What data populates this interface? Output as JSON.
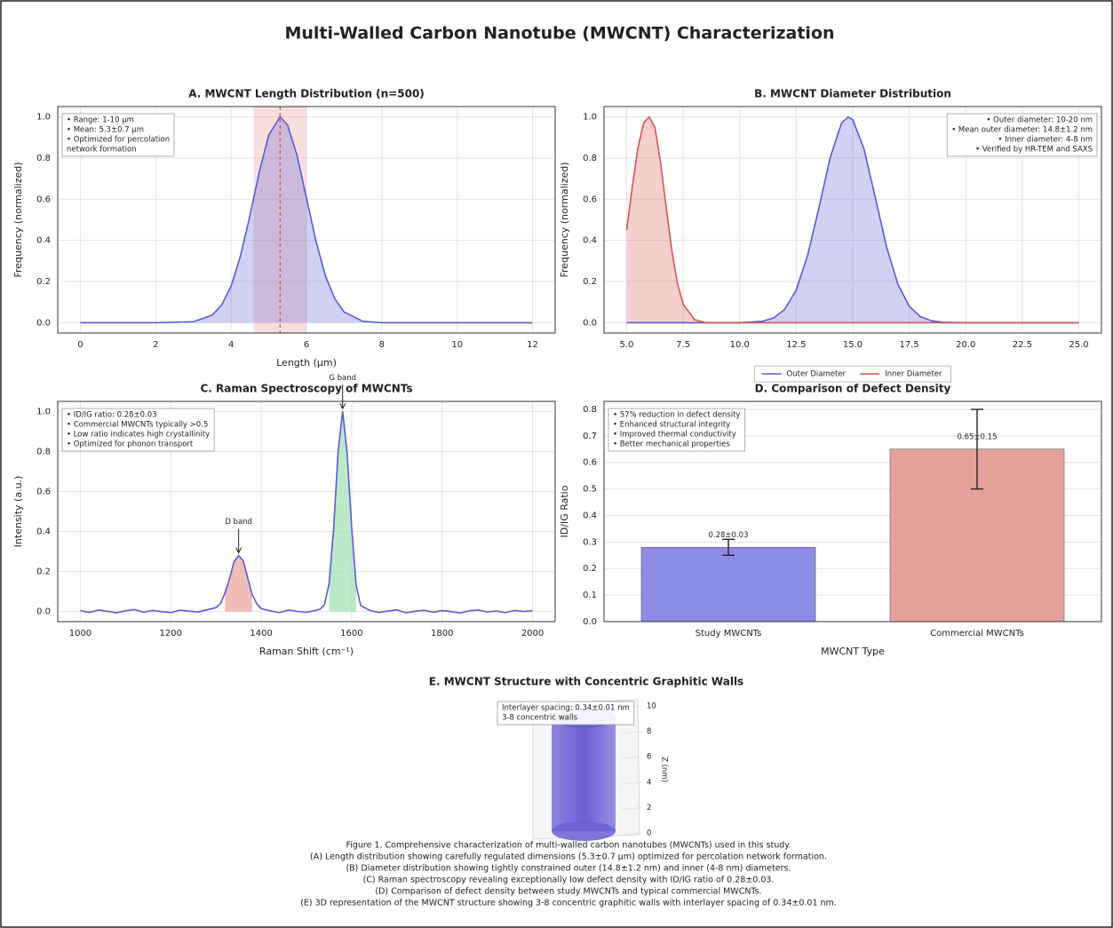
{
  "title": "Multi-Walled Carbon Nanotube (MWCNT) Characterization",
  "chart_data": [
    {
      "type": "line",
      "title": "A. MWCNT Length Distribution (n=500)",
      "xlabel": "Length (μm)",
      "ylabel": "Frequency (normalized)",
      "xlim": [
        -0.6,
        12.6
      ],
      "ylim": [
        -0.05,
        1.05
      ],
      "xticks": [
        0,
        2,
        4,
        6,
        8,
        10,
        12
      ],
      "yticks": [
        {
          "value": 0,
          "label": "0.0"
        },
        0.2,
        0.4,
        0.6,
        0.8,
        {
          "value": 1,
          "label": "1.0"
        }
      ],
      "grid": true,
      "series": [
        {
          "color": "#5a5ad8",
          "fill": true,
          "x": [
            0,
            1,
            2,
            3,
            3.5,
            3.75,
            4,
            4.25,
            4.5,
            4.75,
            5,
            5.3,
            5.5,
            5.75,
            6,
            6.25,
            6.5,
            6.75,
            7,
            7.5,
            8,
            9,
            10,
            11,
            12
          ],
          "values": [
            0,
            0,
            0,
            0.005,
            0.037,
            0.086,
            0.178,
            0.325,
            0.52,
            0.734,
            0.912,
            1,
            0.96,
            0.813,
            0.607,
            0.398,
            0.23,
            0.117,
            0.052,
            0.007,
            0,
            0,
            0,
            0,
            0
          ]
        }
      ],
      "span": [
        4.6,
        6.0
      ],
      "span_color": "#e8a39a",
      "vline": 5.3,
      "vline_color": "#d9534f",
      "notes": [
        "• Range: 1-10 μm",
        "• Mean: 5.3±0.7 μm",
        "• Optimized for percolation",
        "  network formation"
      ],
      "notes_corner": "upper left"
    },
    {
      "type": "line",
      "title": "B. MWCNT Diameter Distribution",
      "ylabel": "Frequency (normalized)",
      "xlim": [
        4,
        26
      ],
      "ylim": [
        -0.05,
        1.05
      ],
      "xticks": [
        {
          "value": 5,
          "label": "5.0"
        },
        7.5,
        {
          "value": 10,
          "label": "10.0"
        },
        12.5,
        {
          "value": 15,
          "label": "15.0"
        },
        17.5,
        {
          "value": 20,
          "label": "20.0"
        },
        22.5,
        {
          "value": 25,
          "label": "25.0"
        }
      ],
      "yticks": [
        {
          "value": 0,
          "label": "0.0"
        },
        0.2,
        0.4,
        0.6,
        0.8,
        {
          "value": 1,
          "label": "1.0"
        }
      ],
      "grid": true,
      "series": [
        {
          "name": "Outer Diameter",
          "color": "#5a5ad8",
          "fill": true,
          "x": [
            5,
            10,
            11,
            11.5,
            12,
            12.5,
            13,
            13.5,
            14,
            14.5,
            14.8,
            15,
            15.5,
            16,
            16.5,
            17,
            17.5,
            18,
            18.5,
            19,
            20,
            25
          ],
          "values": [
            0,
            0,
            0.007,
            0.023,
            0.066,
            0.159,
            0.325,
            0.556,
            0.801,
            0.969,
            1,
            0.986,
            0.844,
            0.607,
            0.367,
            0.186,
            0.08,
            0.029,
            0.009,
            0.002,
            0,
            0
          ]
        },
        {
          "name": "Inner Diameter",
          "color": "#d9534f",
          "fill": true,
          "x": [
            5,
            5.25,
            5.5,
            5.75,
            6,
            6.25,
            6.5,
            6.75,
            7,
            7.25,
            7.5,
            8,
            8.5,
            10,
            25
          ],
          "values": [
            0.45,
            0.66,
            0.85,
            0.97,
            1,
            0.95,
            0.78,
            0.56,
            0.35,
            0.19,
            0.09,
            0.015,
            0,
            0,
            0
          ]
        }
      ],
      "legend": "below",
      "notes": [
        "• Outer diameter: 10-20 nm",
        "• Mean outer diameter: 14.8±1.2 nm",
        "• Inner diameter: 4-8 nm",
        "• Verified by HR-TEM and SAXS"
      ],
      "notes_corner": "upper right"
    },
    {
      "type": "line",
      "title": "C. Raman Spectroscopy of MWCNTs",
      "xlabel": "Raman Shift (cm⁻¹)",
      "ylabel": "Intensity (a.u.)",
      "xlim": [
        950,
        2050
      ],
      "ylim": [
        -0.05,
        1.05
      ],
      "xticks": [
        1000,
        1200,
        1400,
        1600,
        1800,
        2000
      ],
      "yticks": [
        {
          "value": 0,
          "label": "0.0"
        },
        0.2,
        0.4,
        0.6,
        0.8,
        {
          "value": 1,
          "label": "1.0"
        }
      ],
      "grid": true,
      "series": [
        {
          "color": "#5a5ad8",
          "fill": false,
          "x": [
            1000,
            1020,
            1040,
            1060,
            1080,
            1100,
            1120,
            1140,
            1160,
            1180,
            1200,
            1220,
            1240,
            1260,
            1280,
            1300,
            1310,
            1320,
            1330,
            1340,
            1350,
            1360,
            1370,
            1380,
            1390,
            1400,
            1420,
            1440,
            1460,
            1480,
            1500,
            1520,
            1530,
            1540,
            1550,
            1560,
            1570,
            1580,
            1590,
            1600,
            1610,
            1620,
            1640,
            1660,
            1680,
            1700,
            1720,
            1740,
            1760,
            1780,
            1800,
            1820,
            1840,
            1860,
            1880,
            1900,
            1920,
            1940,
            1960,
            1980,
            2000
          ],
          "values": [
            0.005,
            -0.004,
            0.008,
            0.002,
            -0.006,
            0.004,
            0.01,
            -0.003,
            0.006,
            0,
            -0.005,
            0.007,
            0.003,
            -0.002,
            0.009,
            0.02,
            0.04,
            0.095,
            0.165,
            0.25,
            0.28,
            0.255,
            0.17,
            0.085,
            0.04,
            0.015,
            0.004,
            -0.005,
            0.008,
            0.001,
            -0.003,
            0.006,
            0.012,
            0.035,
            0.14,
            0.41,
            0.8,
            1,
            0.79,
            0.42,
            0.13,
            0.03,
            0.006,
            -0.004,
            0.003,
            0.009,
            -0.006,
            0.002,
            0.007,
            -0.003,
            0.005,
            0,
            -0.007,
            0.004,
            0.008,
            -0.002,
            0.003,
            -0.005,
            0.006,
            0.001,
            0.004
          ]
        }
      ],
      "bands": [
        {
          "range": [
            1320,
            1380
          ],
          "color": "#e8a39a"
        },
        {
          "range": [
            1550,
            1610
          ],
          "color": "#9fe0b0"
        }
      ],
      "annotations": [
        {
          "text": "D band",
          "x": 1350,
          "y": 0.28
        },
        {
          "text": "G band",
          "x": 1580,
          "y": 1.0
        }
      ],
      "notes": [
        "• ID/IG ratio: 0.28±0.03",
        "• Commercial MWCNTs typically >0.5",
        "• Low ratio indicates high crystallinity",
        "• Optimized for phonon transport"
      ],
      "notes_corner": "upper left"
    },
    {
      "type": "bar",
      "title": "D. Comparison of Defect Density",
      "xlabel": "MWCNT Type",
      "ylabel": "ID/IG Ratio",
      "categories": [
        "Study MWCNTs",
        "Commercial MWCNTs"
      ],
      "values": [
        0.28,
        0.65
      ],
      "errors": [
        0.03,
        0.15
      ],
      "value_labels": [
        "0.28±0.03",
        "0.65±0.15"
      ],
      "colors": [
        "#8c8ce6",
        "#e6a09a"
      ],
      "ylim": [
        0,
        0.83
      ],
      "yticks": [
        {
          "value": 0,
          "label": "0.0"
        },
        0.1,
        0.2,
        0.3,
        0.4,
        0.5,
        0.6,
        0.7,
        0.8
      ],
      "grid": true,
      "notes": [
        "• 57% reduction in defect density",
        "• Enhanced structural integrity",
        "• Improved thermal conductivity",
        "• Better mechanical properties"
      ],
      "notes_corner": "upper left"
    },
    {
      "type": "cylinder3d",
      "title": "E. MWCNT Structure with Concentric Graphitic Walls",
      "zlabel": "Z (nm)",
      "zlim": [
        0,
        10
      ],
      "zticks": [
        0,
        2,
        4,
        6,
        8,
        10
      ],
      "color": "#6b5fd6",
      "notes": [
        "Interlayer spacing: 0.34±0.01 nm",
        "3-8 concentric walls"
      ]
    }
  ],
  "caption": [
    "Figure 1. Comprehensive characterization of multi-walled carbon nanotubes (MWCNTs) used in this study.",
    "(A) Length distribution showing carefully regulated dimensions (5.3±0.7 μm) optimized for percolation network formation.",
    "(B) Diameter distribution showing tightly constrained outer (14.8±1.2 nm) and inner (4-8 nm) diameters.",
    "(C) Raman spectroscopy revealing exceptionally low defect density with ID/IG ratio of 0.28±0.03.",
    "(D) Comparison of defect density between study MWCNTs and typical commercial MWCNTs.",
    "(E) 3D representation of the MWCNT structure showing 3-8 concentric graphitic walls with interlayer spacing of 0.34±0.01 nm."
  ]
}
